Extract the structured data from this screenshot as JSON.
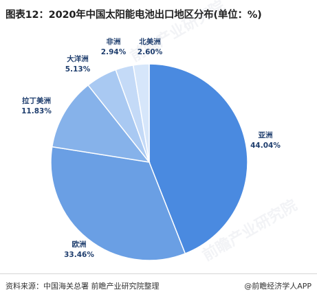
{
  "title": "图表12：2020年中国太阳能电池出口地区分布(单位：%)",
  "chart_data": {
    "type": "pie",
    "unit": "%",
    "slices": [
      {
        "name": "亚洲",
        "value": 44.04,
        "value_label": "44.04%",
        "color": "#4a8ae0"
      },
      {
        "name": "欧洲",
        "value": 33.46,
        "value_label": "33.46%",
        "color": "#6a9fe4"
      },
      {
        "name": "拉丁美洲",
        "value": 11.83,
        "value_label": "11.83%",
        "color": "#86b2ea"
      },
      {
        "name": "大洋洲",
        "value": 5.13,
        "value_label": "5.13%",
        "color": "#a9c9f2"
      },
      {
        "name": "非洲",
        "value": 2.94,
        "value_label": "2.94%",
        "color": "#c4daf7"
      },
      {
        "name": "北美洲",
        "value": 2.6,
        "value_label": "2.60%",
        "color": "#d6e6fa"
      }
    ]
  },
  "watermark": "前瞻产业研究院",
  "footer": {
    "source": "资料来源：中国海关总署 前瞻产业研究院整理",
    "credit": "@前瞻经济学人APP"
  }
}
